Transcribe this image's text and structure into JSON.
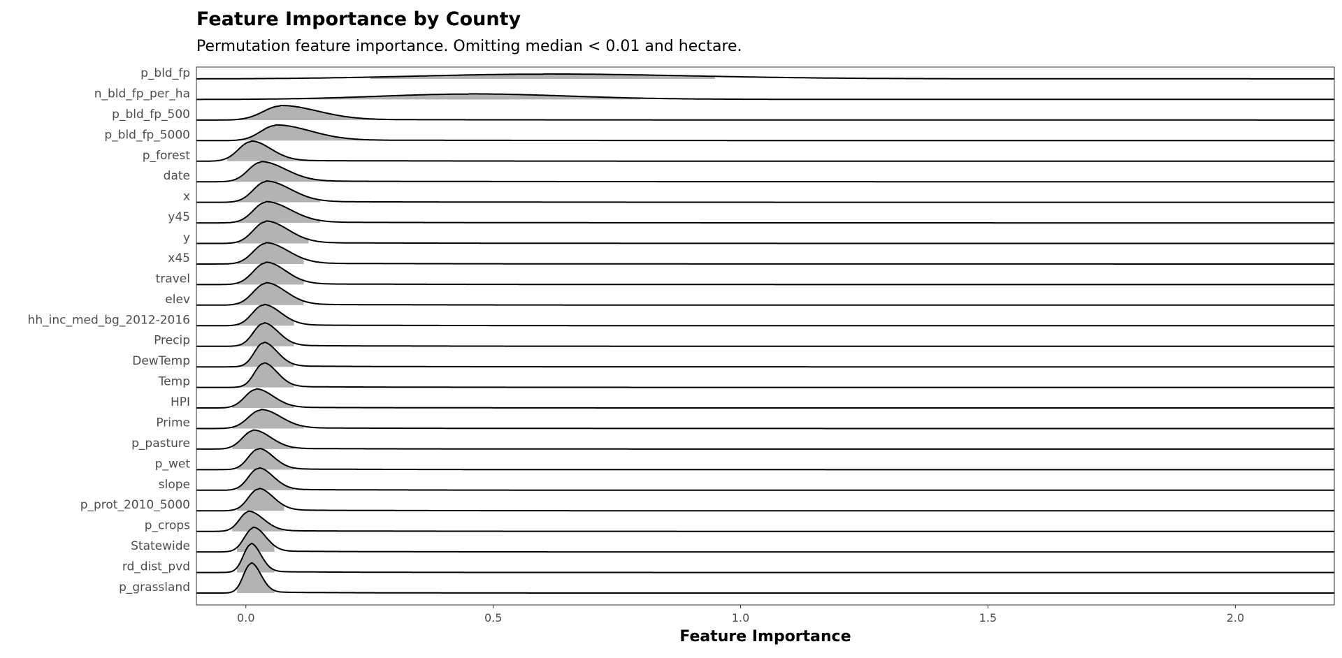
{
  "chart_data": {
    "type": "ridgeline",
    "title": "Feature Importance by County",
    "subtitle": "Permutation feature importance. Omitting median < 0.01 and hectare.",
    "xlabel": "Feature Importance",
    "xlim": [
      -0.1,
      2.2
    ],
    "xticks": [
      0.0,
      0.5,
      1.0,
      1.5,
      2.0
    ],
    "xtick_labels": [
      "0.0",
      "0.5",
      "1.0",
      "1.5",
      "2.0"
    ],
    "fill_color": "#b3b3b3",
    "line_color": "#000000",
    "fill_range_quantiles": [
      0.05,
      0.95
    ],
    "features": [
      {
        "name": "p_bld_fp",
        "peak": 0.6,
        "spread_left": 0.25,
        "spread_right": 0.3,
        "height": 0.22,
        "fill_from": 0.25,
        "fill_to": 0.95
      },
      {
        "name": "n_bld_fp_per_ha",
        "peak": 0.45,
        "spread_left": 0.18,
        "spread_right": 0.2,
        "height": 0.25,
        "fill_from": 0.0,
        "fill_to": 0.8
      },
      {
        "name": "p_bld_fp_500",
        "peak": 0.07,
        "spread_left": 0.035,
        "spread_right": 0.075,
        "height": 0.65,
        "fill_from": -0.02,
        "fill_to": 0.35
      },
      {
        "name": "p_bld_fp_5000",
        "peak": 0.06,
        "spread_left": 0.03,
        "spread_right": 0.07,
        "height": 0.7,
        "fill_from": -0.02,
        "fill_to": 0.3
      },
      {
        "name": "p_forest",
        "peak": 0.01,
        "spread_left": 0.025,
        "spread_right": 0.04,
        "height": 0.9,
        "fill_from": -0.04,
        "fill_to": 0.2
      },
      {
        "name": "date",
        "peak": 0.03,
        "spread_left": 0.025,
        "spread_right": 0.05,
        "height": 0.9,
        "fill_from": -0.03,
        "fill_to": 0.2
      },
      {
        "name": "x",
        "peak": 0.04,
        "spread_left": 0.025,
        "spread_right": 0.05,
        "height": 0.95,
        "fill_from": -0.02,
        "fill_to": 0.15
      },
      {
        "name": "y45",
        "peak": 0.04,
        "spread_left": 0.025,
        "spread_right": 0.05,
        "height": 0.95,
        "fill_from": -0.02,
        "fill_to": 0.15
      },
      {
        "name": "y",
        "peak": 0.04,
        "spread_left": 0.025,
        "spread_right": 0.045,
        "height": 1.0,
        "fill_from": -0.02,
        "fill_to": 0.13
      },
      {
        "name": "x45",
        "peak": 0.04,
        "spread_left": 0.025,
        "spread_right": 0.045,
        "height": 0.95,
        "fill_from": -0.02,
        "fill_to": 0.12
      },
      {
        "name": "travel",
        "peak": 0.04,
        "spread_left": 0.025,
        "spread_right": 0.04,
        "height": 1.0,
        "fill_from": -0.02,
        "fill_to": 0.12
      },
      {
        "name": "elev",
        "peak": 0.04,
        "spread_left": 0.025,
        "spread_right": 0.04,
        "height": 1.0,
        "fill_from": -0.02,
        "fill_to": 0.12
      },
      {
        "name": "hh_inc_med_bg_2012-2016",
        "peak": 0.035,
        "spread_left": 0.022,
        "spread_right": 0.035,
        "height": 0.95,
        "fill_from": -0.02,
        "fill_to": 0.1
      },
      {
        "name": "Precip",
        "peak": 0.035,
        "spread_left": 0.02,
        "spread_right": 0.03,
        "height": 1.05,
        "fill_from": -0.02,
        "fill_to": 0.1
      },
      {
        "name": "DewTemp",
        "peak": 0.035,
        "spread_left": 0.018,
        "spread_right": 0.028,
        "height": 1.1,
        "fill_from": -0.02,
        "fill_to": 0.1
      },
      {
        "name": "Temp",
        "peak": 0.035,
        "spread_left": 0.018,
        "spread_right": 0.028,
        "height": 1.1,
        "fill_from": -0.02,
        "fill_to": 0.1
      },
      {
        "name": "HPI",
        "peak": 0.02,
        "spread_left": 0.022,
        "spread_right": 0.035,
        "height": 0.85,
        "fill_from": -0.03,
        "fill_to": 0.1
      },
      {
        "name": "Prime",
        "peak": 0.03,
        "spread_left": 0.025,
        "spread_right": 0.04,
        "height": 0.85,
        "fill_from": -0.03,
        "fill_to": 0.12
      },
      {
        "name": "p_pasture",
        "peak": 0.015,
        "spread_left": 0.022,
        "spread_right": 0.035,
        "height": 0.85,
        "fill_from": -0.03,
        "fill_to": 0.1
      },
      {
        "name": "p_wet",
        "peak": 0.025,
        "spread_left": 0.02,
        "spread_right": 0.03,
        "height": 0.95,
        "fill_from": -0.02,
        "fill_to": 0.1
      },
      {
        "name": "slope",
        "peak": 0.025,
        "spread_left": 0.02,
        "spread_right": 0.03,
        "height": 1.0,
        "fill_from": -0.02,
        "fill_to": 0.1
      },
      {
        "name": "p_prot_2010_5000",
        "peak": 0.025,
        "spread_left": 0.02,
        "spread_right": 0.03,
        "height": 1.0,
        "fill_from": -0.02,
        "fill_to": 0.08
      },
      {
        "name": "p_crops",
        "peak": 0.005,
        "spread_left": 0.018,
        "spread_right": 0.03,
        "height": 0.9,
        "fill_from": -0.03,
        "fill_to": 0.08
      },
      {
        "name": "Statewide",
        "peak": 0.015,
        "spread_left": 0.018,
        "spread_right": 0.025,
        "height": 1.1,
        "fill_from": -0.02,
        "fill_to": 0.06
      },
      {
        "name": "rd_dist_pvd",
        "peak": 0.01,
        "spread_left": 0.015,
        "spread_right": 0.02,
        "height": 1.3,
        "fill_from": -0.02,
        "fill_to": 0.06
      },
      {
        "name": "p_grassland",
        "peak": 0.01,
        "spread_left": 0.015,
        "spread_right": 0.02,
        "height": 1.35,
        "fill_from": -0.02,
        "fill_to": 0.06
      }
    ]
  }
}
